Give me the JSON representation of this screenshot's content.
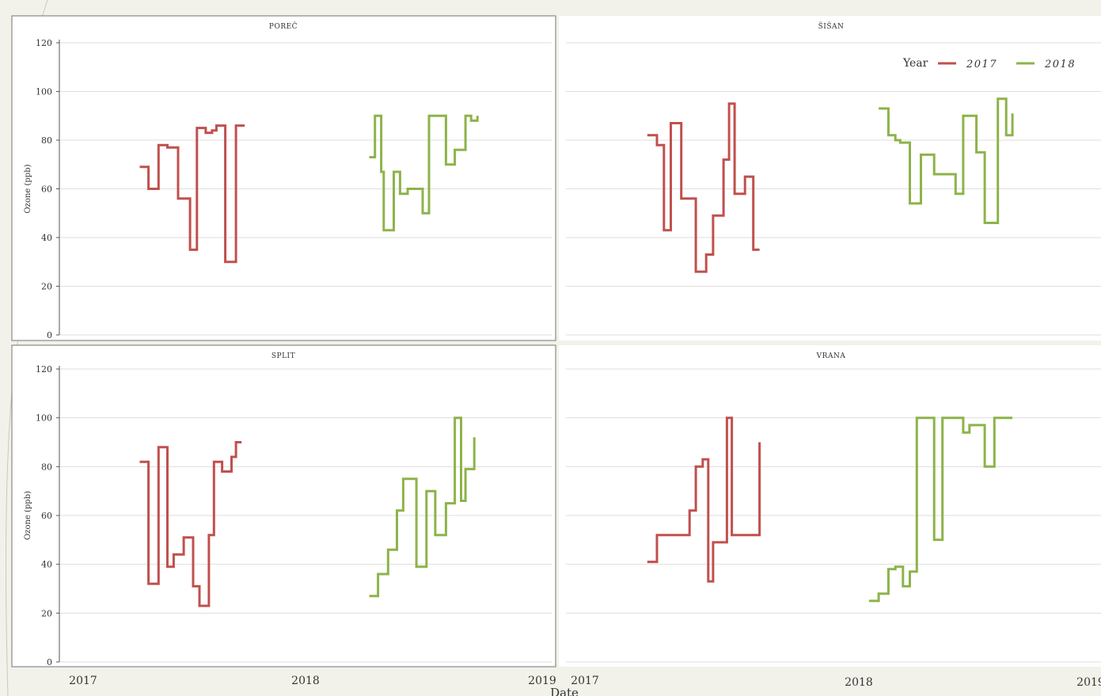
{
  "chart_data": {
    "type": "line",
    "step": true,
    "xlabel": "Date",
    "x_ticks": [
      "2017",
      "2018",
      "2019"
    ],
    "ylabel": "Ozone (ppb)",
    "ylim": [
      0,
      120
    ],
    "y_ticks": [
      0,
      20,
      40,
      60,
      80,
      100,
      120
    ],
    "grid": true,
    "legend": {
      "title": "Year",
      "placement": "top-right",
      "entries": [
        {
          "label": "2017",
          "color": "#c0504d"
        },
        {
          "label": "2018",
          "color": "#8db34a"
        }
      ]
    },
    "colors": {
      "2017": "#c0504d",
      "2018": "#8db34a"
    },
    "panels": [
      {
        "title": "POREČ",
        "series": [
          {
            "name": "2017",
            "x": [
              "2017-04-01",
              "2017-04-15",
              "2017-05-01",
              "2017-05-15",
              "2017-06-01",
              "2017-06-20",
              "2017-07-01",
              "2017-07-15",
              "2017-07-25",
              "2017-08-01",
              "2017-08-15",
              "2017-08-25",
              "2017-09-01",
              "2017-09-15"
            ],
            "y": [
              69,
              60,
              78,
              77,
              56,
              35,
              85,
              83,
              84,
              86,
              30,
              30,
              86,
              86
            ]
          },
          {
            "name": "2018",
            "x": [
              "2018-04-01",
              "2018-04-10",
              "2018-04-20",
              "2018-04-24",
              "2018-05-01",
              "2018-05-10",
              "2018-05-20",
              "2018-06-01",
              "2018-06-15",
              "2018-06-25",
              "2018-07-05",
              "2018-07-15",
              "2018-08-01",
              "2018-08-15",
              "2018-09-01",
              "2018-09-10",
              "2018-09-20"
            ],
            "y": [
              73,
              90,
              67,
              43,
              43,
              67,
              58,
              60,
              60,
              50,
              90,
              90,
              70,
              76,
              90,
              88,
              90
            ]
          }
        ]
      },
      {
        "title": "ŠIŠAN",
        "series": [
          {
            "name": "2017",
            "x": [
              "2017-04-01",
              "2017-04-15",
              "2017-04-25",
              "2017-05-05",
              "2017-05-20",
              "2017-06-10",
              "2017-06-25",
              "2017-07-05",
              "2017-07-20",
              "2017-07-28",
              "2017-08-05",
              "2017-08-20",
              "2017-09-01",
              "2017-09-10"
            ],
            "y": [
              82,
              78,
              43,
              87,
              56,
              26,
              33,
              49,
              72,
              95,
              58,
              65,
              35,
              35
            ]
          },
          {
            "name": "2018",
            "x": [
              "2018-03-01",
              "2018-03-15",
              "2018-03-25",
              "2018-04-01",
              "2018-04-15",
              "2018-05-01",
              "2018-05-20",
              "2018-06-01",
              "2018-06-20",
              "2018-07-01",
              "2018-07-20",
              "2018-08-01",
              "2018-08-20",
              "2018-09-01",
              "2018-09-10"
            ],
            "y": [
              93,
              82,
              80,
              79,
              54,
              74,
              66,
              66,
              58,
              90,
              75,
              46,
              97,
              82,
              91
            ]
          }
        ]
      },
      {
        "title": "SPLIT",
        "series": [
          {
            "name": "2017",
            "x": [
              "2017-04-01",
              "2017-04-15",
              "2017-05-01",
              "2017-05-15",
              "2017-05-25",
              "2017-06-10",
              "2017-06-25",
              "2017-07-05",
              "2017-07-20",
              "2017-07-28",
              "2017-08-10",
              "2017-08-25",
              "2017-09-01",
              "2017-09-10"
            ],
            "y": [
              82,
              32,
              88,
              39,
              44,
              51,
              31,
              23,
              52,
              82,
              78,
              84,
              90,
              90
            ]
          },
          {
            "name": "2018",
            "x": [
              "2018-04-01",
              "2018-04-15",
              "2018-05-01",
              "2018-05-15",
              "2018-05-25",
              "2018-06-15",
              "2018-07-01",
              "2018-07-15",
              "2018-08-01",
              "2018-08-15",
              "2018-08-25",
              "2018-09-01",
              "2018-09-15"
            ],
            "y": [
              27,
              36,
              46,
              62,
              75,
              39,
              70,
              52,
              65,
              100,
              66,
              79,
              92
            ]
          }
        ]
      },
      {
        "title": "VRANA",
        "series": [
          {
            "name": "2017",
            "x": [
              "2017-04-01",
              "2017-04-15",
              "2017-05-20",
              "2017-06-01",
              "2017-06-10",
              "2017-06-20",
              "2017-06-28",
              "2017-07-05",
              "2017-07-15",
              "2017-07-25",
              "2017-08-01",
              "2017-08-20",
              "2017-09-10"
            ],
            "y": [
              41,
              52,
              52,
              62,
              80,
              83,
              33,
              49,
              49,
              100,
              52,
              52,
              90
            ]
          },
          {
            "name": "2018",
            "x": [
              "2018-02-15",
              "2018-03-01",
              "2018-03-15",
              "2018-03-25",
              "2018-04-05",
              "2018-04-15",
              "2018-04-25",
              "2018-05-01",
              "2018-05-20",
              "2018-06-01",
              "2018-06-15",
              "2018-07-01",
              "2018-07-10",
              "2018-07-20",
              "2018-08-01",
              "2018-08-15",
              "2018-09-10"
            ],
            "y": [
              25,
              28,
              38,
              39,
              31,
              37,
              100,
              100,
              50,
              100,
              100,
              94,
              97,
              97,
              80,
              100,
              100
            ]
          }
        ]
      }
    ]
  }
}
